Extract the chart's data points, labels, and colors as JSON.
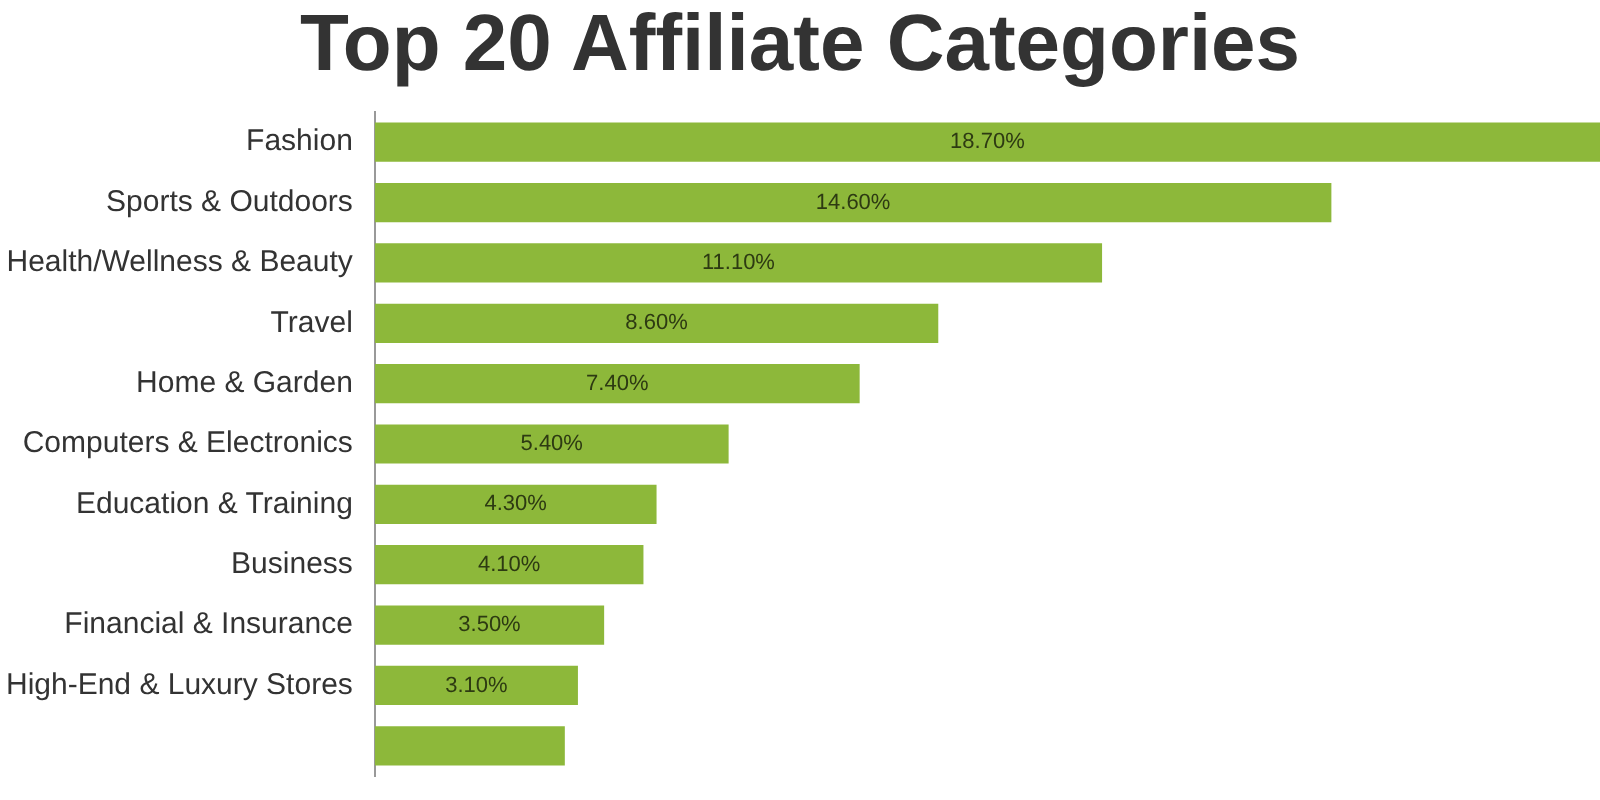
{
  "chart_data": {
    "type": "bar",
    "orientation": "horizontal",
    "title": "Top 20 Affiliate Categories",
    "categories": [
      "Fashion",
      "Sports & Outdoors",
      "Health/Wellness & Beauty",
      "Travel",
      "Home & Garden",
      "Computers & Electronics",
      "Education & Training",
      "Business",
      "Financial & Insurance",
      "High-End & Luxury Stores",
      null
    ],
    "values": [
      18.7,
      14.6,
      11.1,
      8.6,
      7.4,
      5.4,
      4.3,
      4.1,
      3.5,
      3.1,
      2.9
    ],
    "value_labels": [
      "18.70%",
      "14.60%",
      "11.10%",
      "8.60%",
      "7.40%",
      "5.40%",
      "4.30%",
      "4.10%",
      "3.50%",
      "3.10%",
      null
    ],
    "color": "#8db83a",
    "xlim": [
      0,
      18.7
    ],
    "tick_labels": "y",
    "legend": false
  }
}
